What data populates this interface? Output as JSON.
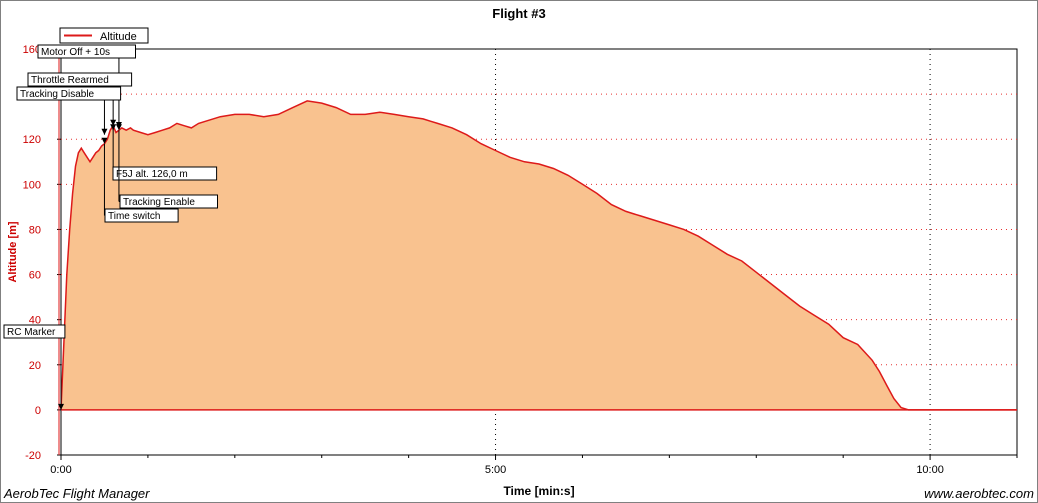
{
  "chart_data": {
    "type": "area",
    "title": "Flight #3",
    "xlabel": "Time [min:s]",
    "ylabel": "Altitude [m]",
    "xlim": [
      0,
      660
    ],
    "ylim": [
      -20,
      160
    ],
    "x_ticks": [
      {
        "value": 0,
        "label": "0:00"
      },
      {
        "value": 300,
        "label": "5:00"
      },
      {
        "value": 600,
        "label": "10:00"
      }
    ],
    "x_minor_step": 60,
    "y_ticks": [
      -20,
      0,
      20,
      40,
      60,
      80,
      100,
      120,
      140,
      160
    ],
    "grid": true,
    "legend": {
      "placement": "top-left",
      "entries": [
        "Altitude"
      ]
    },
    "series": [
      {
        "name": "Altitude",
        "x": [
          0,
          2,
          4,
          6,
          8,
          10,
          12,
          14,
          16,
          18,
          20,
          22,
          24,
          26,
          28,
          30,
          32,
          34,
          36,
          38,
          40,
          42,
          45,
          48,
          50,
          55,
          60,
          65,
          70,
          75,
          80,
          85,
          90,
          95,
          100,
          110,
          120,
          130,
          140,
          150,
          160,
          170,
          180,
          190,
          200,
          210,
          220,
          230,
          240,
          250,
          255,
          260,
          270,
          280,
          290,
          300,
          310,
          320,
          330,
          340,
          350,
          360,
          370,
          380,
          390,
          400,
          410,
          420,
          430,
          440,
          450,
          460,
          470,
          480,
          490,
          500,
          510,
          520,
          530,
          540,
          550,
          560,
          565,
          570,
          575,
          580,
          585,
          590,
          595,
          598,
          600,
          602,
          610,
          620,
          630,
          640,
          650,
          660
        ],
        "values": [
          0,
          30,
          60,
          80,
          96,
          108,
          114,
          116,
          114,
          112,
          110,
          112,
          114,
          115,
          117,
          118,
          120,
          124,
          126,
          123,
          124,
          125,
          124,
          125,
          124,
          123,
          122,
          123,
          124,
          125,
          127,
          126,
          125,
          127,
          128,
          130,
          131,
          131,
          130,
          131,
          134,
          137,
          136,
          134,
          131,
          131,
          132,
          131,
          130,
          129,
          128,
          127,
          125,
          122,
          118,
          115,
          112,
          110,
          109,
          107,
          104,
          100,
          96,
          91,
          88,
          86,
          84,
          82,
          80,
          77,
          73,
          69,
          66,
          61,
          56,
          51,
          46,
          42,
          38,
          32,
          29,
          22,
          17,
          11,
          5,
          1,
          0,
          0,
          0,
          0,
          0,
          0,
          0,
          0,
          0,
          0,
          0,
          0
        ]
      }
    ],
    "annotations": [
      {
        "label": "RC Marker",
        "x": 0,
        "y": 0
      },
      {
        "label": "Motor Off + 10s",
        "x": 40,
        "y": 125
      },
      {
        "label": "Throttle Rearmed",
        "x": 36,
        "y": 124
      },
      {
        "label": "Tracking Disable",
        "x": 30,
        "y": 122
      },
      {
        "label": "F5J alt. 126,0 m",
        "x": 36,
        "y": 126
      },
      {
        "label": "Tracking Enable",
        "x": 40,
        "y": 124
      },
      {
        "label": "Time switch",
        "x": 30,
        "y": 118
      }
    ],
    "colors": {
      "line": "#dd1a1a",
      "fill": "#f9c28f",
      "axis_text": "#cc0000",
      "zero_line": "#dd1a1a",
      "grid": "#e63030"
    }
  },
  "footer": {
    "left": "AerobTec Flight Manager",
    "right": "www.aerobtec.com"
  }
}
